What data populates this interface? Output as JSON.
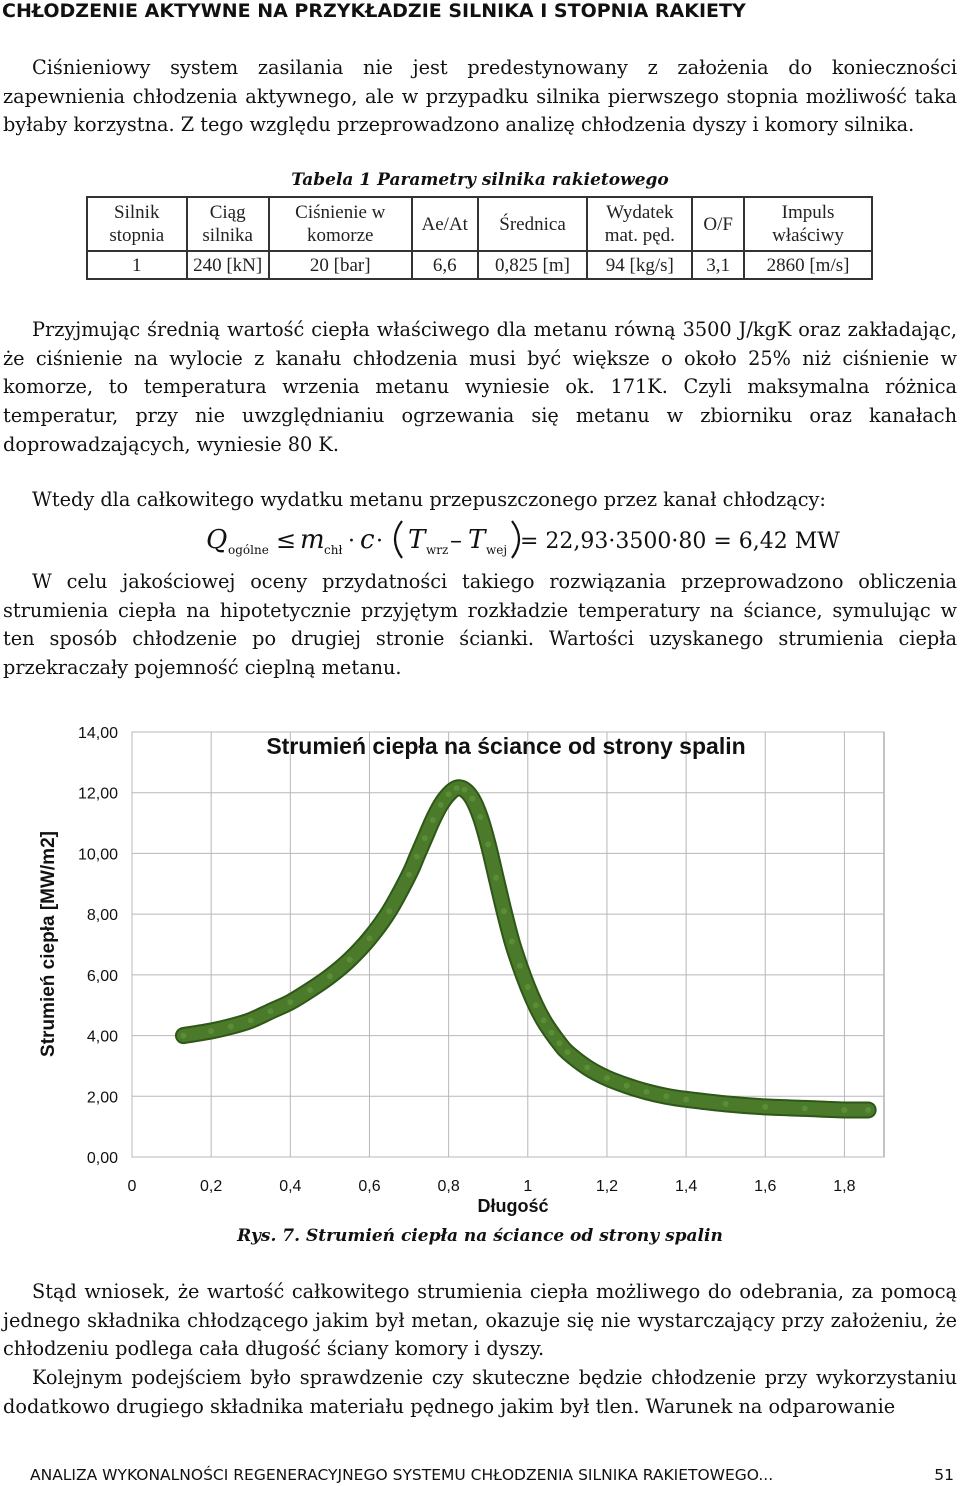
{
  "heading": "CHŁODZENIE AKTYWNE NA PRZYKŁADZIE SILNIKA I STOPNIA RAKIETY",
  "para1": "Ciśnieniowy system zasilania nie jest predestynowany z założenia do konieczności zapewnienia chłodzenia aktywnego, ale w przypadku silnika pierwszego stopnia możliwość taka byłaby korzystna. Z tego względu przeprowadzono analizę chłodzenia dyszy i komory silnika.",
  "table": {
    "caption": "Tabela 1 Parametry silnika rakietowego",
    "headers": [
      [
        "Silnik",
        "stopnia"
      ],
      [
        "Ciąg",
        "silnika"
      ],
      [
        "Ciśnienie w",
        "komorze"
      ],
      [
        "Ae/At"
      ],
      [
        "Średnica"
      ],
      [
        "Wydatek",
        "mat. pęd."
      ],
      [
        "O/F"
      ],
      [
        "Impuls",
        "właściwy"
      ]
    ],
    "values": [
      "1",
      "240 [kN]",
      "20 [bar]",
      "6,6",
      "0,825 [m]",
      "94 [kg/s]",
      "3,1",
      "2860 [m/s]"
    ]
  },
  "para2": "Przyjmując średnią wartość ciepła właściwego dla metanu równą 3500 J/kgK oraz zakładając, że ciśnienie na wylocie z kanału chłodzenia musi być większe o około 25% niż ciśnienie w komorze, to temperatura wrzenia metanu wyniesie ok. 171K. Czyli maksymalna różnica temperatur, przy nie uwzględnianiu ogrzewania się metanu w zbiorniku oraz kanałach doprowadzających, wyniesie 80 K.",
  "para3": "Wtedy dla całkowitego wydatku metanu przepuszczonego przez kanał chłodzący:",
  "formula": {
    "Q": "Q",
    "Q_sub": "ogólne",
    "leq": "≤",
    "m": "m",
    "m_sub": "chł",
    "c": "c",
    "T1": "T",
    "T1_sub": "wrz",
    "minus": "–",
    "T2": "T",
    "T2_sub": "wej",
    "rhs": "= 22,93·3500·80 = 6,42 MW"
  },
  "para4": "W celu jakościowej oceny przydatności takiego rozwiązania przeprowadzono obliczenia strumienia ciepła na hipotetycznie przyjętym rozkładzie temperatury na ściance, symulując w ten sposób chłodzenie po drugiej stronie ścianki. Wartości uzyskanego strumienia ciepła przekraczały pojemność cieplną metanu.",
  "chart_data": {
    "type": "line",
    "title": "Strumień ciepła na ściance od strony spalin",
    "xlabel": "Długość",
    "ylabel": "Strumień ciepła [MW/m2]",
    "xlim": [
      0,
      1.9
    ],
    "ylim": [
      0,
      14
    ],
    "x_ticks": [
      "0",
      "0,2",
      "0,4",
      "0,6",
      "0,8",
      "1",
      "1,2",
      "1,4",
      "1,6",
      "1,8"
    ],
    "y_ticks": [
      "0,00",
      "2,00",
      "4,00",
      "6,00",
      "8,00",
      "10,00",
      "12,00",
      "14,00"
    ],
    "grid": true,
    "series": [
      {
        "color": "#4a7a2a",
        "x": [
          0.13,
          0.2,
          0.25,
          0.3,
          0.35,
          0.4,
          0.45,
          0.5,
          0.55,
          0.6,
          0.65,
          0.7,
          0.72,
          0.74,
          0.76,
          0.78,
          0.8,
          0.82,
          0.84,
          0.86,
          0.88,
          0.9,
          0.92,
          0.94,
          0.96,
          0.98,
          1.0,
          1.02,
          1.04,
          1.06,
          1.08,
          1.1,
          1.15,
          1.2,
          1.25,
          1.3,
          1.35,
          1.4,
          1.5,
          1.6,
          1.7,
          1.8,
          1.86
        ],
        "y": [
          4.0,
          4.15,
          4.3,
          4.5,
          4.8,
          5.1,
          5.5,
          5.95,
          6.5,
          7.2,
          8.1,
          9.3,
          9.9,
          10.5,
          11.1,
          11.6,
          11.95,
          12.15,
          12.1,
          11.8,
          11.2,
          10.3,
          9.2,
          8.1,
          7.1,
          6.3,
          5.6,
          5.0,
          4.5,
          4.1,
          3.75,
          3.45,
          2.95,
          2.6,
          2.35,
          2.15,
          2.0,
          1.9,
          1.75,
          1.65,
          1.6,
          1.55,
          1.55
        ]
      }
    ]
  },
  "figure_caption": "Rys. 7. Strumień ciepła na ściance od strony spalin",
  "para5": "Stąd wniosek, że wartość całkowitego strumienia ciepła możliwego do odebrania, za pomocą jednego składnika chłodzącego jakim był metan, okazuje się nie wystarczający przy założeniu, że chłodzeniu podlega cała długość ściany komory i dyszy.",
  "para6": "Kolejnym podejściem było sprawdzenie czy skuteczne będzie chłodzenie przy wykorzystaniu dodatkowo drugiego składnika materiału pędnego jakim był tlen. Warunek na odparowanie",
  "footer": {
    "title": "ANALIZA WYKONALNOŚCI REGENERACYJNEGO SYSTEMU CHŁODZENIA SILNIKA RAKIETOWEGO...",
    "page": "51"
  }
}
